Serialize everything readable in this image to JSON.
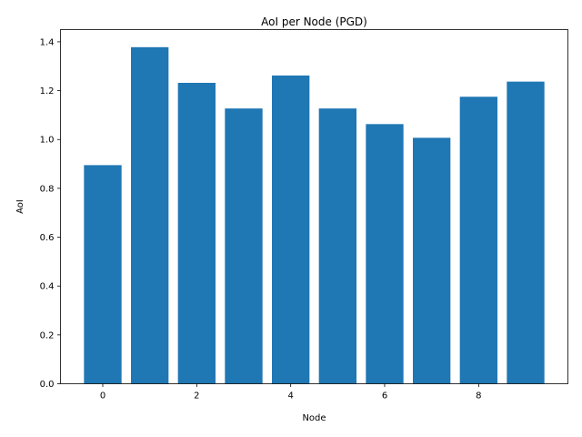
{
  "chart_data": {
    "type": "bar",
    "title": "AoI per Node (PGD)",
    "xlabel": "Node",
    "ylabel": "AoI",
    "x": [
      0,
      1,
      2,
      3,
      4,
      5,
      6,
      7,
      8,
      9
    ],
    "values": [
      0.895,
      1.378,
      1.232,
      1.127,
      1.262,
      1.127,
      1.063,
      1.007,
      1.175,
      1.237
    ],
    "xlim": [
      -0.9,
      9.9
    ],
    "ylim": [
      0,
      1.45
    ],
    "xticks": [
      0,
      2,
      4,
      6,
      8
    ],
    "yticks": [
      0.0,
      0.2,
      0.4,
      0.6,
      0.8,
      1.0,
      1.2,
      1.4
    ],
    "ytick_labels": [
      "0.0",
      "0.2",
      "0.4",
      "0.6",
      "0.8",
      "1.0",
      "1.2",
      "1.4"
    ],
    "bar_color": "#1f77b4",
    "grid": false,
    "legend": false
  }
}
